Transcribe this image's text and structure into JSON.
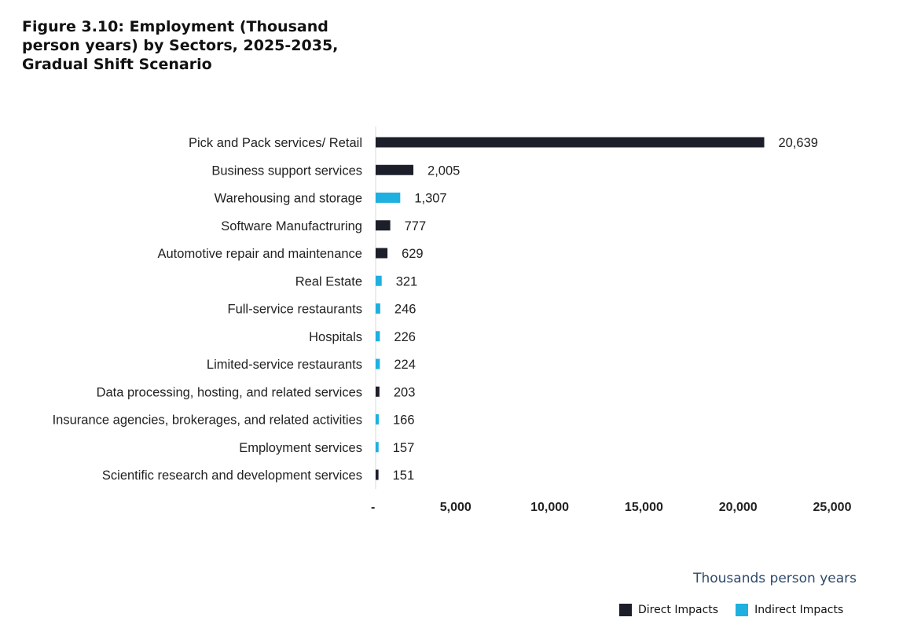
{
  "chart_data": {
    "type": "bar",
    "orientation": "horizontal",
    "title": "Figure 3.10: Employment (Thousand person years) by Sectors, 2025-2035, Gradual Shift Scenario",
    "xlabel": "Thousands person years",
    "xlim": [
      0,
      25000
    ],
    "x_ticks": [
      "-",
      "5,000",
      "10,000",
      "15,000",
      "20,000",
      "25,000"
    ],
    "grid": false,
    "legend_position": "bottom-right",
    "legend": [
      {
        "name": "Direct Impacts",
        "color": "#1c1f2a"
      },
      {
        "name": "Indirect Impacts",
        "color": "#1fb0e0"
      }
    ],
    "categories": [
      "Pick and Pack services/ Retail",
      "Business support services",
      "Warehousing and storage",
      "Software Manufactruring",
      "Automotive repair and maintenance",
      "Real Estate",
      "Full-service restaurants",
      "Hospitals",
      "Limited-service restaurants",
      "Data processing, hosting, and related services",
      "Insurance agencies, brokerages, and related activities",
      "Employment services",
      "Scientific research and development services"
    ],
    "values": [
      20639,
      2005,
      1307,
      777,
      629,
      321,
      246,
      226,
      224,
      203,
      166,
      157,
      151
    ],
    "value_labels": [
      "20,639",
      "2,005",
      "1,307",
      "777",
      "629",
      "321",
      "246",
      "226",
      "224",
      "203",
      "166",
      "157",
      "151"
    ],
    "impact_type": [
      "Direct Impacts",
      "Direct Impacts",
      "Indirect Impacts",
      "Direct Impacts",
      "Direct Impacts",
      "Indirect Impacts",
      "Indirect Impacts",
      "Indirect Impacts",
      "Indirect Impacts",
      "Direct Impacts",
      "Indirect Impacts",
      "Indirect Impacts",
      "Direct Impacts"
    ]
  }
}
